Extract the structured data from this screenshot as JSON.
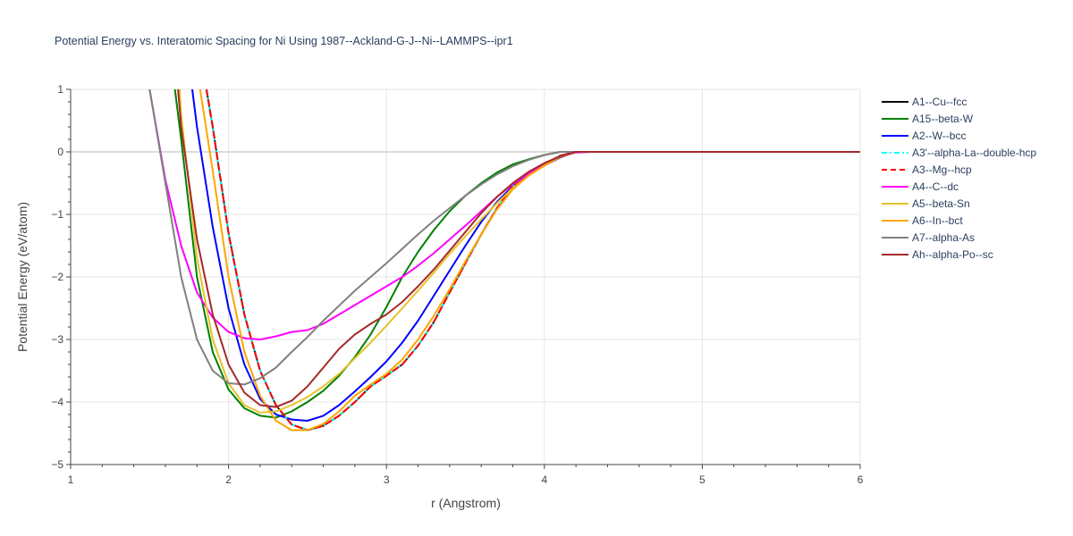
{
  "chart_data": {
    "type": "line",
    "title": "Potential Energy vs. Interatomic Spacing for Ni Using 1987--Ackland-G-J--Ni--LAMMPS--ipr1",
    "xlabel": "r (Angstrom)",
    "ylabel": "Potential Energy (eV/atom)",
    "xlim": [
      1,
      6
    ],
    "ylim": [
      -5,
      1
    ],
    "x_ticks": [
      1,
      2,
      3,
      4,
      5,
      6
    ],
    "x_tick_labels": [
      "1",
      "2",
      "3",
      "4",
      "5",
      "6"
    ],
    "y_ticks": [
      1,
      0,
      -1,
      -2,
      -3,
      -4,
      -5
    ],
    "y_tick_labels": [
      "1",
      "0",
      "−1",
      "−2",
      "−3",
      "−4",
      "−5"
    ],
    "grid": true,
    "legend_position": "right",
    "series": [
      {
        "name": "A1--Cu--fcc",
        "color": "#000000",
        "dash": "solid",
        "x": [
          1.86,
          1.9,
          2.0,
          2.1,
          2.2,
          2.3,
          2.4,
          2.5,
          2.6,
          2.7,
          2.8,
          2.9,
          3.0,
          3.1,
          3.2,
          3.3,
          3.4,
          3.5,
          3.6,
          3.7,
          3.8,
          3.9,
          4.0,
          4.1,
          4.2,
          4.3,
          6.0
        ],
        "y": [
          1.0,
          0.4,
          -1.3,
          -2.6,
          -3.5,
          -4.05,
          -4.36,
          -4.45,
          -4.38,
          -4.22,
          -4.0,
          -3.75,
          -3.58,
          -3.4,
          -3.1,
          -2.72,
          -2.25,
          -1.78,
          -1.32,
          -0.9,
          -0.55,
          -0.33,
          -0.2,
          -0.06,
          0.0,
          0.0,
          0.0
        ]
      },
      {
        "name": "A15--beta-W",
        "color": "#008000",
        "dash": "solid",
        "x": [
          1.66,
          1.7,
          1.8,
          1.9,
          2.0,
          2.1,
          2.2,
          2.3,
          2.4,
          2.5,
          2.6,
          2.7,
          2.8,
          2.9,
          3.0,
          3.1,
          3.2,
          3.3,
          3.4,
          3.5,
          3.6,
          3.7,
          3.8,
          3.9,
          4.0,
          4.1,
          4.2,
          6.0
        ],
        "y": [
          1.0,
          0.2,
          -2.0,
          -3.2,
          -3.8,
          -4.1,
          -4.22,
          -4.25,
          -4.15,
          -4.0,
          -3.82,
          -3.58,
          -3.28,
          -2.92,
          -2.48,
          -2.0,
          -1.6,
          -1.25,
          -0.95,
          -0.7,
          -0.5,
          -0.33,
          -0.2,
          -0.12,
          -0.05,
          0.0,
          0.0,
          0.0
        ]
      },
      {
        "name": "A2--W--bcc",
        "color": "#0000ff",
        "dash": "solid",
        "x": [
          1.77,
          1.8,
          1.9,
          2.0,
          2.1,
          2.2,
          2.3,
          2.4,
          2.5,
          2.6,
          2.7,
          2.8,
          2.9,
          3.0,
          3.1,
          3.2,
          3.3,
          3.4,
          3.5,
          3.6,
          3.7,
          3.8,
          3.9,
          4.0,
          4.1,
          4.2,
          4.3,
          6.0
        ],
        "y": [
          1.0,
          0.4,
          -1.2,
          -2.5,
          -3.4,
          -3.95,
          -4.2,
          -4.28,
          -4.3,
          -4.22,
          -4.05,
          -3.83,
          -3.6,
          -3.35,
          -3.05,
          -2.7,
          -2.3,
          -1.9,
          -1.5,
          -1.12,
          -0.8,
          -0.55,
          -0.36,
          -0.22,
          -0.09,
          0.0,
          0.0,
          0.0
        ]
      },
      {
        "name": "A3'--alpha-La--double-hcp",
        "color": "#00ffff",
        "dash": "dashdot",
        "x": [
          1.86,
          1.9,
          2.0,
          2.1,
          2.2,
          2.3,
          2.4,
          2.5,
          2.6,
          2.7,
          2.8,
          2.9,
          3.0,
          3.1,
          3.2,
          3.3,
          3.4,
          3.5,
          3.6,
          3.7,
          3.8,
          3.9,
          4.0,
          4.1,
          4.2,
          4.3,
          6.0
        ],
        "y": [
          1.0,
          0.4,
          -1.3,
          -2.6,
          -3.5,
          -4.05,
          -4.36,
          -4.45,
          -4.38,
          -4.22,
          -4.0,
          -3.75,
          -3.58,
          -3.4,
          -3.1,
          -2.72,
          -2.25,
          -1.78,
          -1.32,
          -0.9,
          -0.55,
          -0.33,
          -0.2,
          -0.06,
          0.0,
          0.0,
          0.0
        ]
      },
      {
        "name": "A3--Mg--hcp",
        "color": "#ff0000",
        "dash": "dash",
        "x": [
          1.86,
          1.9,
          2.0,
          2.1,
          2.2,
          2.3,
          2.4,
          2.5,
          2.6,
          2.7,
          2.8,
          2.9,
          3.0,
          3.1,
          3.2,
          3.3,
          3.4,
          3.5,
          3.6,
          3.7,
          3.8,
          3.9,
          4.0,
          4.1,
          4.2,
          4.3,
          6.0
        ],
        "y": [
          1.0,
          0.4,
          -1.3,
          -2.6,
          -3.5,
          -4.05,
          -4.36,
          -4.45,
          -4.38,
          -4.22,
          -4.0,
          -3.75,
          -3.58,
          -3.4,
          -3.1,
          -2.72,
          -2.25,
          -1.78,
          -1.32,
          -0.9,
          -0.55,
          -0.33,
          -0.2,
          -0.06,
          0.0,
          0.0,
          0.0
        ]
      },
      {
        "name": "A4--C--dc",
        "color": "#ff00ff",
        "dash": "solid",
        "x": [
          1.5,
          1.6,
          1.7,
          1.8,
          1.9,
          2.0,
          2.1,
          2.2,
          2.3,
          2.4,
          2.5,
          2.6,
          2.7,
          2.8,
          2.9,
          3.0,
          3.1,
          3.2,
          3.3,
          3.4,
          3.5,
          3.6,
          3.7,
          3.8,
          3.9,
          4.0,
          4.1,
          4.2,
          4.3,
          6.0
        ],
        "y": [
          1.0,
          -0.45,
          -1.5,
          -2.25,
          -2.65,
          -2.88,
          -2.98,
          -3.0,
          -2.95,
          -2.88,
          -2.85,
          -2.75,
          -2.6,
          -2.45,
          -2.3,
          -2.15,
          -2.0,
          -1.82,
          -1.62,
          -1.4,
          -1.18,
          -0.95,
          -0.72,
          -0.52,
          -0.35,
          -0.2,
          -0.08,
          -0.01,
          0.0,
          0.0
        ]
      },
      {
        "name": "A5--beta-Sn",
        "color": "#e6c229",
        "dash": "solid",
        "x": [
          1.69,
          1.7,
          1.8,
          1.9,
          2.0,
          2.1,
          2.2,
          2.3,
          2.4,
          2.5,
          2.6,
          2.7,
          2.8,
          2.9,
          3.0,
          3.1,
          3.2,
          3.3,
          3.4,
          3.5,
          3.6,
          3.7,
          3.8,
          3.9,
          4.0,
          4.1,
          4.2,
          4.3,
          6.0
        ],
        "y": [
          1.0,
          0.6,
          -1.7,
          -3.0,
          -3.7,
          -4.05,
          -4.17,
          -4.15,
          -4.05,
          -3.92,
          -3.75,
          -3.55,
          -3.3,
          -3.05,
          -2.78,
          -2.5,
          -2.22,
          -1.93,
          -1.63,
          -1.35,
          -1.08,
          -0.82,
          -0.58,
          -0.38,
          -0.22,
          -0.08,
          0.0,
          0.0,
          0.0
        ]
      },
      {
        "name": "A6--In--bct",
        "color": "#ffa500",
        "dash": "solid",
        "x": [
          1.82,
          1.9,
          2.0,
          2.1,
          2.2,
          2.3,
          2.4,
          2.5,
          2.6,
          2.7,
          2.8,
          2.9,
          3.0,
          3.1,
          3.2,
          3.3,
          3.4,
          3.5,
          3.6,
          3.7,
          3.8,
          3.9,
          4.0,
          4.1,
          4.2,
          4.3,
          6.0
        ],
        "y": [
          1.0,
          -0.3,
          -2.0,
          -3.2,
          -3.9,
          -4.3,
          -4.45,
          -4.45,
          -4.35,
          -4.15,
          -3.9,
          -3.72,
          -3.55,
          -3.32,
          -3.0,
          -2.62,
          -2.2,
          -1.75,
          -1.32,
          -0.92,
          -0.6,
          -0.38,
          -0.22,
          -0.08,
          0.0,
          0.0,
          0.0
        ]
      },
      {
        "name": "A7--alpha-As",
        "color": "#808080",
        "dash": "solid",
        "x": [
          1.5,
          1.6,
          1.7,
          1.8,
          1.9,
          2.0,
          2.1,
          2.2,
          2.3,
          2.4,
          2.5,
          2.6,
          2.7,
          2.8,
          2.9,
          3.0,
          3.1,
          3.2,
          3.3,
          3.4,
          3.5,
          3.6,
          3.7,
          3.8,
          3.9,
          4.0,
          4.1,
          4.2,
          4.3,
          6.0
        ],
        "y": [
          1.0,
          -0.5,
          -2.0,
          -3.0,
          -3.5,
          -3.7,
          -3.72,
          -3.62,
          -3.45,
          -3.2,
          -2.96,
          -2.7,
          -2.46,
          -2.22,
          -2.0,
          -1.78,
          -1.55,
          -1.32,
          -1.1,
          -0.9,
          -0.7,
          -0.52,
          -0.36,
          -0.23,
          -0.13,
          -0.05,
          0.0,
          0.0,
          0.0,
          0.0
        ]
      },
      {
        "name": "Ah--alpha-Po--sc",
        "color": "#a52a2a",
        "dash": "solid",
        "x": [
          1.68,
          1.7,
          1.8,
          1.9,
          2.0,
          2.1,
          2.2,
          2.3,
          2.4,
          2.5,
          2.6,
          2.7,
          2.8,
          2.9,
          3.0,
          3.1,
          3.2,
          3.3,
          3.4,
          3.5,
          3.6,
          3.7,
          3.8,
          3.9,
          4.0,
          4.1,
          4.2,
          4.3,
          6.0
        ],
        "y": [
          1.0,
          0.4,
          -1.4,
          -2.6,
          -3.4,
          -3.85,
          -4.05,
          -4.08,
          -3.98,
          -3.75,
          -3.45,
          -3.15,
          -2.92,
          -2.75,
          -2.6,
          -2.4,
          -2.15,
          -1.88,
          -1.58,
          -1.28,
          -0.98,
          -0.72,
          -0.5,
          -0.32,
          -0.18,
          -0.07,
          0.0,
          0.0,
          0.0
        ]
      }
    ]
  }
}
